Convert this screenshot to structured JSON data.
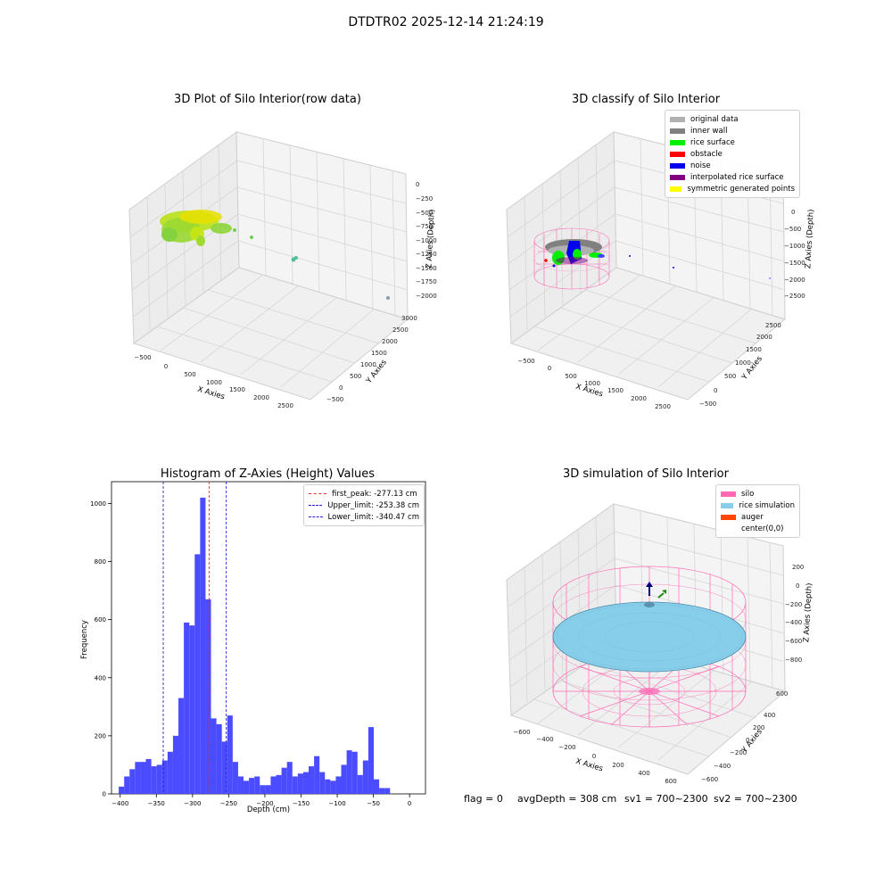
{
  "suptitle": "DTDTR02 2025-12-14 21:24:19",
  "footer": {
    "flag": "flag = 0",
    "avgDepth": "avgDepth = 308 cm",
    "sv1": "sv1 = 700~2300",
    "sv2": "sv2 = 700~2300"
  },
  "colors": {
    "grid": "#d9d9d9",
    "pane": "#f2f2f2",
    "hist_bar": "#4b4bff",
    "silo": "#ff69b4",
    "rice": "#87ceeb",
    "auger": "#ff4500",
    "first_peak_line": "#e03030",
    "limit_lines": "#2020e0"
  },
  "chart_data": [
    {
      "type": "scatter",
      "subtype": "3d",
      "title": "3D Plot of Silo Interior(row data)",
      "xlabel": "X Axies",
      "ylabel": "Y Axies",
      "zlabel": "Z Axies (Depth)",
      "x_ticks": [
        "−500",
        "0",
        "500",
        "1000",
        "1500",
        "2000",
        "2500"
      ],
      "y_ticks": [
        "−500",
        "0",
        "500",
        "1000",
        "1500",
        "2000",
        "2500",
        "3000"
      ],
      "z_ticks": [
        "0",
        "−250",
        "−500",
        "−750",
        "−1000",
        "−1250",
        "−1500",
        "−1750",
        "−2000"
      ],
      "point_colors": [
        "#7fd63a",
        "#b8e21a",
        "#e8e000",
        "#a4de2c"
      ],
      "grid": true
    },
    {
      "type": "scatter",
      "subtype": "3d",
      "title": "3D classify of Silo Interior",
      "xlabel": "X Axies",
      "ylabel": "Y Axies",
      "zlabel": "Z Axies (Depth)",
      "x_ticks": [
        "−500",
        "0",
        "500",
        "1000",
        "1500",
        "2000",
        "2500"
      ],
      "y_ticks": [
        "−500",
        "0",
        "500",
        "1000",
        "1500",
        "2000",
        "2500"
      ],
      "z_ticks": [
        "0",
        "−500",
        "−1000",
        "−1500",
        "−2000",
        "−2500"
      ],
      "legend_position": "top-right",
      "legend": [
        {
          "label": "original data",
          "color": "#b0b0b0"
        },
        {
          "label": "inner wall",
          "color": "#808080"
        },
        {
          "label": "rice surface",
          "color": "#00ee00"
        },
        {
          "label": "obstacle",
          "color": "#ff0000"
        },
        {
          "label": "noise",
          "color": "#0000ee"
        },
        {
          "label": "interpolated rice surface",
          "color": "#800080"
        },
        {
          "label": "symmetric generated points",
          "color": "#ffff00"
        }
      ],
      "grid": true
    },
    {
      "type": "bar",
      "subtype": "histogram",
      "title": "Histogram of Z-Axies (Height) Values",
      "xlabel": "Depth (cm)",
      "ylabel": "Frequency",
      "xlim": [
        -412,
        22
      ],
      "ylim": [
        0,
        1075
      ],
      "x_ticks": [
        -400,
        -350,
        -300,
        -250,
        -200,
        -150,
        -100,
        -50,
        0
      ],
      "x_tick_labels": [
        "−400",
        "−350",
        "−300",
        "−250",
        "−200",
        "−150",
        "−100",
        "−50",
        "0"
      ],
      "y_ticks": [
        0,
        200,
        400,
        600,
        800,
        1000
      ],
      "y_tick_labels": [
        "0",
        "200",
        "400",
        "600",
        "800",
        "1000"
      ],
      "bin_start": -402,
      "bin_width": 7.5,
      "values": [
        25,
        60,
        85,
        110,
        110,
        120,
        95,
        100,
        115,
        145,
        200,
        330,
        590,
        580,
        825,
        1020,
        670,
        260,
        240,
        180,
        270,
        110,
        60,
        45,
        55,
        60,
        30,
        30,
        60,
        65,
        90,
        110,
        60,
        70,
        75,
        95,
        130,
        75,
        50,
        45,
        60,
        100,
        150,
        145,
        65,
        115,
        230,
        50,
        20,
        20
      ],
      "vlines": [
        {
          "label": "first_peak: -277.13 cm",
          "x": -277.13,
          "color": "#e03030"
        },
        {
          "label": "Upper_limit: -253.38 cm",
          "x": -253.38,
          "color": "#2020e0"
        },
        {
          "label": "Lower_limit: -340.47 cm",
          "x": -340.47,
          "color": "#2020e0"
        }
      ],
      "legend_position": "top-right"
    },
    {
      "type": "scatter",
      "subtype": "3d-surface",
      "title": "3D simulation of Silo Interior",
      "xlabel": "X Axies",
      "ylabel": "Y Axies",
      "zlabel": "Z Axies (Depth)",
      "x_ticks": [
        "−600",
        "−400",
        "−200",
        "0",
        "200",
        "400",
        "600"
      ],
      "y_ticks": [
        "−600",
        "−400",
        "−200",
        "0",
        "200",
        "400",
        "600"
      ],
      "z_ticks": [
        "200",
        "0",
        "−200",
        "−400",
        "−600",
        "−800"
      ],
      "legend_position": "top-right",
      "legend": [
        {
          "label": "silo",
          "color": "#ff69b4"
        },
        {
          "label": "rice simulation",
          "color": "#87ceeb"
        },
        {
          "label": "auger",
          "color": "#ff4500"
        },
        {
          "label": "center(0,0)",
          "color": "#ffffff"
        }
      ],
      "grid": true
    }
  ]
}
